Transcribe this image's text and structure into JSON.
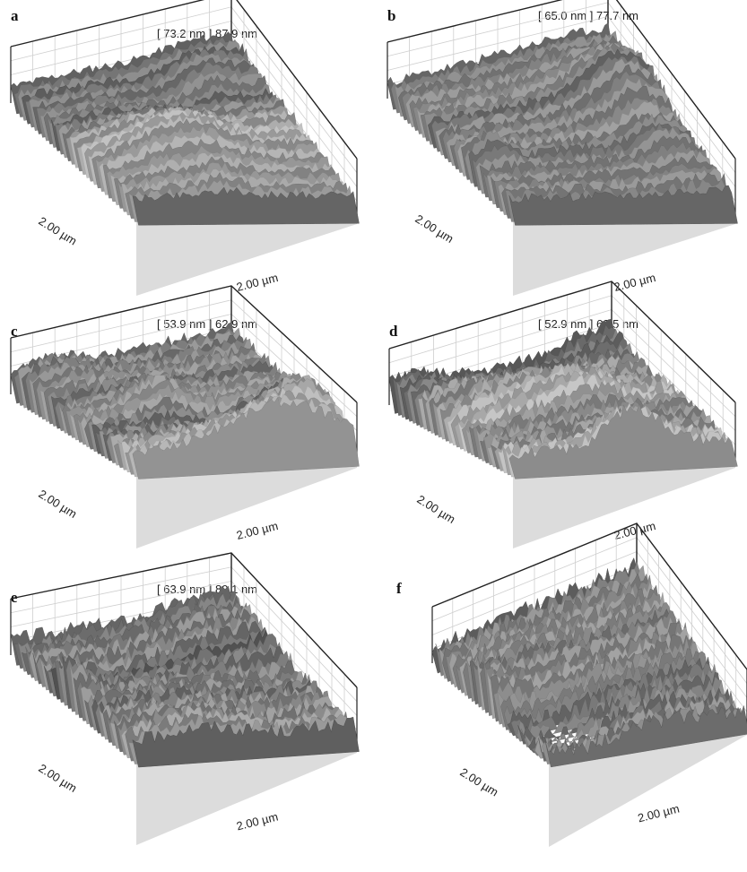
{
  "panels": [
    {
      "id": "a",
      "range": "[ 73.2 nm ] 87.9 nm",
      "axis_left": "2.00 µm",
      "axis_right": "2.00 µm"
    },
    {
      "id": "b",
      "range": "[ 65.0 nm ] 77.7 nm",
      "axis_left": "2.00 µm",
      "axis_right": "2.00 µm"
    },
    {
      "id": "c",
      "range": "[ 53.9 nm ] 62.9 nm",
      "axis_left": "2.00 µm",
      "axis_right": "2.00 µm"
    },
    {
      "id": "d",
      "range": "[ 52.9 nm ] 62.5 nm",
      "axis_left": "2.00 µm",
      "axis_right": "2.00 µm"
    },
    {
      "id": "e",
      "range": "[ 63.9 nm ] 89.1 nm",
      "axis_left": "2.00 µm",
      "axis_right": "2.00 µm"
    },
    {
      "id": "f",
      "range": "",
      "axis_left": "2.00 µm",
      "axis_right": "2.00 µm"
    }
  ],
  "colors": {
    "surface_dark": "#3a3a3a",
    "surface_light": "#e8e8e8",
    "floor": "#d9d9d9",
    "frame": "#222222"
  }
}
